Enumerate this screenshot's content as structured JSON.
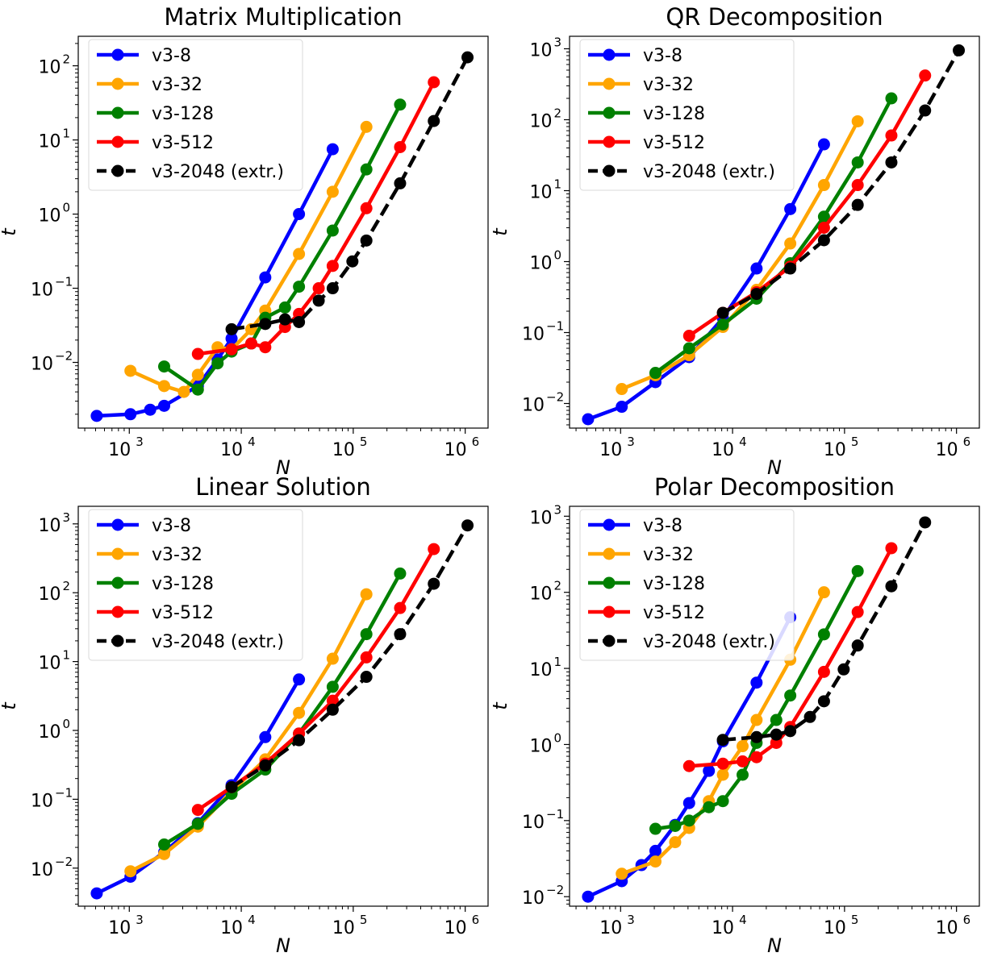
{
  "chart_data": [
    {
      "type": "line",
      "title": "Matrix Multiplication",
      "xlabel": "N",
      "ylabel": "t",
      "xscale": "log",
      "yscale": "log",
      "xlim": [
        350,
        1600000
      ],
      "ylim": [
        0.0013,
        250
      ],
      "xticks": [
        1000,
        10000,
        100000,
        1000000
      ],
      "xtick_labels": [
        "10",
        "10",
        "10",
        "10"
      ],
      "xtick_exponents": [
        "3",
        "4",
        "5",
        "6"
      ],
      "yticks": [
        0.01,
        0.1,
        1,
        10,
        100
      ],
      "ytick_labels": [
        "10",
        "10",
        "10",
        "10",
        "10"
      ],
      "ytick_exponents": [
        "−2",
        "−1",
        "0",
        "1",
        "2"
      ],
      "legend_position": "upper-left",
      "series": [
        {
          "name": "v3-8",
          "color": "#0000ff",
          "dashed": false,
          "x": [
            512,
            1024,
            1536,
            2048,
            4096,
            6144,
            8192,
            16384,
            32768,
            65536
          ],
          "y": [
            0.0019,
            0.002,
            0.0023,
            0.0026,
            0.0048,
            0.011,
            0.021,
            0.14,
            1.0,
            7.5
          ]
        },
        {
          "name": "v3-32",
          "color": "#ffa500",
          "dashed": false,
          "x": [
            1024,
            2048,
            3072,
            4096,
            6144,
            8192,
            12288,
            16384,
            32768,
            65536,
            131072
          ],
          "y": [
            0.0077,
            0.0048,
            0.004,
            0.0068,
            0.016,
            0.015,
            0.028,
            0.05,
            0.29,
            2.0,
            15
          ]
        },
        {
          "name": "v3-128",
          "color": "#008000",
          "dashed": false,
          "x": [
            2048,
            4096,
            6144,
            8192,
            12288,
            16384,
            24576,
            32768,
            65536,
            131072,
            262144
          ],
          "y": [
            0.0088,
            0.0043,
            0.0097,
            0.014,
            0.018,
            0.04,
            0.055,
            0.105,
            0.6,
            4.0,
            30
          ]
        },
        {
          "name": "v3-512",
          "color": "#ff0000",
          "dashed": false,
          "x": [
            4096,
            8192,
            12288,
            16384,
            24576,
            32768,
            49152,
            65536,
            131072,
            262144,
            524288
          ],
          "y": [
            0.013,
            0.015,
            0.018,
            0.016,
            0.03,
            0.045,
            0.1,
            0.2,
            1.2,
            8.0,
            60
          ]
        },
        {
          "name": "v3-2048 (extr.)",
          "color": "#000000",
          "dashed": true,
          "x": [
            8192,
            16384,
            24576,
            32768,
            49152,
            65536,
            98304,
            131072,
            262144,
            524288,
            1048576
          ],
          "y": [
            0.028,
            0.033,
            0.038,
            0.035,
            0.068,
            0.1,
            0.23,
            0.44,
            2.6,
            18,
            130
          ]
        }
      ]
    },
    {
      "type": "line",
      "title": "QR Decomposition",
      "xlabel": "N",
      "ylabel": "t",
      "xscale": "log",
      "yscale": "log",
      "xlim": [
        350,
        1600000
      ],
      "ylim": [
        0.0045,
        1500
      ],
      "xticks": [
        1000,
        10000,
        100000,
        1000000
      ],
      "xtick_labels": [
        "10",
        "10",
        "10",
        "10"
      ],
      "xtick_exponents": [
        "3",
        "4",
        "5",
        "6"
      ],
      "yticks": [
        0.01,
        0.1,
        1,
        10,
        100,
        1000
      ],
      "ytick_labels": [
        "10",
        "10",
        "10",
        "10",
        "10",
        "10"
      ],
      "ytick_exponents": [
        "−2",
        "−1",
        "0",
        "1",
        "2",
        "3"
      ],
      "legend_position": "upper-left",
      "series": [
        {
          "name": "v3-8",
          "color": "#0000ff",
          "dashed": false,
          "x": [
            512,
            1024,
            2048,
            4096,
            8192,
            16384,
            32768,
            65536
          ],
          "y": [
            0.006,
            0.009,
            0.02,
            0.045,
            0.16,
            0.8,
            5.5,
            45
          ]
        },
        {
          "name": "v3-32",
          "color": "#ffa500",
          "dashed": false,
          "x": [
            1024,
            2048,
            4096,
            8192,
            16384,
            32768,
            65536,
            131072
          ],
          "y": [
            0.016,
            0.025,
            0.048,
            0.12,
            0.4,
            1.8,
            12,
            95
          ]
        },
        {
          "name": "v3-128",
          "color": "#008000",
          "dashed": false,
          "x": [
            2048,
            4096,
            8192,
            16384,
            32768,
            65536,
            131072,
            262144
          ],
          "y": [
            0.027,
            0.06,
            0.13,
            0.3,
            0.95,
            4.3,
            25,
            200
          ]
        },
        {
          "name": "v3-512",
          "color": "#ff0000",
          "dashed": false,
          "x": [
            4096,
            8192,
            16384,
            32768,
            65536,
            131072,
            262144,
            524288
          ],
          "y": [
            0.09,
            0.19,
            0.37,
            0.85,
            3.0,
            12,
            60,
            420
          ]
        },
        {
          "name": "v3-2048 (extr.)",
          "color": "#000000",
          "dashed": true,
          "x": [
            8192,
            16384,
            32768,
            65536,
            131072,
            262144,
            524288,
            1048576
          ],
          "y": [
            0.19,
            0.35,
            0.8,
            2.0,
            6.3,
            25,
            135,
            950
          ]
        }
      ]
    },
    {
      "type": "line",
      "title": "Linear Solution",
      "xlabel": "N",
      "ylabel": "t",
      "xscale": "log",
      "yscale": "log",
      "xlim": [
        350,
        1600000
      ],
      "ylim": [
        0.0028,
        1800
      ],
      "xticks": [
        1000,
        10000,
        100000,
        1000000
      ],
      "xtick_labels": [
        "10",
        "10",
        "10",
        "10"
      ],
      "xtick_exponents": [
        "3",
        "4",
        "5",
        "6"
      ],
      "yticks": [
        0.01,
        0.1,
        1,
        10,
        100,
        1000
      ],
      "ytick_labels": [
        "10",
        "10",
        "10",
        "10",
        "10",
        "10"
      ],
      "ytick_exponents": [
        "−2",
        "−1",
        "0",
        "1",
        "2",
        "3"
      ],
      "legend_position": "upper-left",
      "series": [
        {
          "name": "v3-8",
          "color": "#0000ff",
          "dashed": false,
          "x": [
            512,
            1024,
            2048,
            4096,
            8192,
            16384,
            32768
          ],
          "y": [
            0.0043,
            0.0075,
            0.017,
            0.045,
            0.16,
            0.8,
            5.5
          ]
        },
        {
          "name": "v3-32",
          "color": "#ffa500",
          "dashed": false,
          "x": [
            1024,
            2048,
            4096,
            8192,
            16384,
            32768,
            65536,
            131072
          ],
          "y": [
            0.009,
            0.016,
            0.04,
            0.13,
            0.38,
            1.8,
            11,
            95
          ]
        },
        {
          "name": "v3-128",
          "color": "#008000",
          "dashed": false,
          "x": [
            2048,
            4096,
            8192,
            16384,
            32768,
            65536,
            131072,
            262144
          ],
          "y": [
            0.022,
            0.044,
            0.12,
            0.27,
            0.9,
            4.3,
            25,
            190
          ]
        },
        {
          "name": "v3-512",
          "color": "#ff0000",
          "dashed": false,
          "x": [
            4096,
            8192,
            16384,
            32768,
            65536,
            131072,
            262144,
            524288
          ],
          "y": [
            0.07,
            0.15,
            0.33,
            0.9,
            2.7,
            11.5,
            60,
            430
          ]
        },
        {
          "name": "v3-2048 (extr.)",
          "color": "#000000",
          "dashed": true,
          "x": [
            8192,
            16384,
            32768,
            65536,
            131072,
            262144,
            524288,
            1048576
          ],
          "y": [
            0.15,
            0.31,
            0.72,
            2.0,
            6.0,
            25,
            135,
            950
          ]
        }
      ]
    },
    {
      "type": "line",
      "title": "Polar Decomposition",
      "xlabel": "N",
      "ylabel": "t",
      "xscale": "log",
      "yscale": "log",
      "xlim": [
        350,
        1600000
      ],
      "ylim": [
        0.0075,
        1350
      ],
      "xticks": [
        1000,
        10000,
        100000,
        1000000
      ],
      "xtick_labels": [
        "10",
        "10",
        "10",
        "10"
      ],
      "xtick_exponents": [
        "3",
        "4",
        "5",
        "6"
      ],
      "yticks": [
        0.01,
        0.1,
        1,
        10,
        100,
        1000
      ],
      "ytick_labels": [
        "10",
        "10",
        "10",
        "10",
        "10",
        "10"
      ],
      "ytick_exponents": [
        "−2",
        "−1",
        "0",
        "1",
        "2",
        "3"
      ],
      "legend_position": "upper-left",
      "series": [
        {
          "name": "v3-8",
          "color": "#0000ff",
          "dashed": false,
          "x": [
            512,
            1024,
            1536,
            2048,
            3072,
            4096,
            6144,
            8192,
            16384,
            32768
          ],
          "y": [
            0.01,
            0.016,
            0.026,
            0.04,
            0.088,
            0.17,
            0.45,
            1.1,
            6.5,
            47
          ]
        },
        {
          "name": "v3-32",
          "color": "#ffa500",
          "dashed": false,
          "x": [
            1024,
            2048,
            3072,
            4096,
            6144,
            8192,
            12288,
            16384,
            32768,
            65536
          ],
          "y": [
            0.02,
            0.029,
            0.052,
            0.08,
            0.18,
            0.4,
            0.95,
            2.1,
            13,
            100
          ]
        },
        {
          "name": "v3-128",
          "color": "#008000",
          "dashed": false,
          "x": [
            2048,
            3072,
            4096,
            6144,
            8192,
            12288,
            16384,
            24576,
            32768,
            65536,
            131072
          ],
          "y": [
            0.078,
            0.085,
            0.1,
            0.15,
            0.18,
            0.4,
            1.05,
            2.1,
            4.4,
            28,
            190
          ]
        },
        {
          "name": "v3-512",
          "color": "#ff0000",
          "dashed": false,
          "x": [
            4096,
            8192,
            12288,
            16384,
            24576,
            32768,
            65536,
            131072,
            262144
          ],
          "y": [
            0.52,
            0.56,
            0.6,
            0.68,
            1.05,
            1.7,
            9.0,
            55,
            380
          ]
        },
        {
          "name": "v3-2048 (extr.)",
          "color": "#000000",
          "dashed": true,
          "x": [
            8192,
            16384,
            24576,
            32768,
            49152,
            65536,
            98304,
            131072,
            262144,
            524288
          ],
          "y": [
            1.15,
            1.25,
            1.35,
            1.5,
            2.3,
            3.7,
            9.7,
            20,
            120,
            830
          ]
        }
      ]
    }
  ]
}
